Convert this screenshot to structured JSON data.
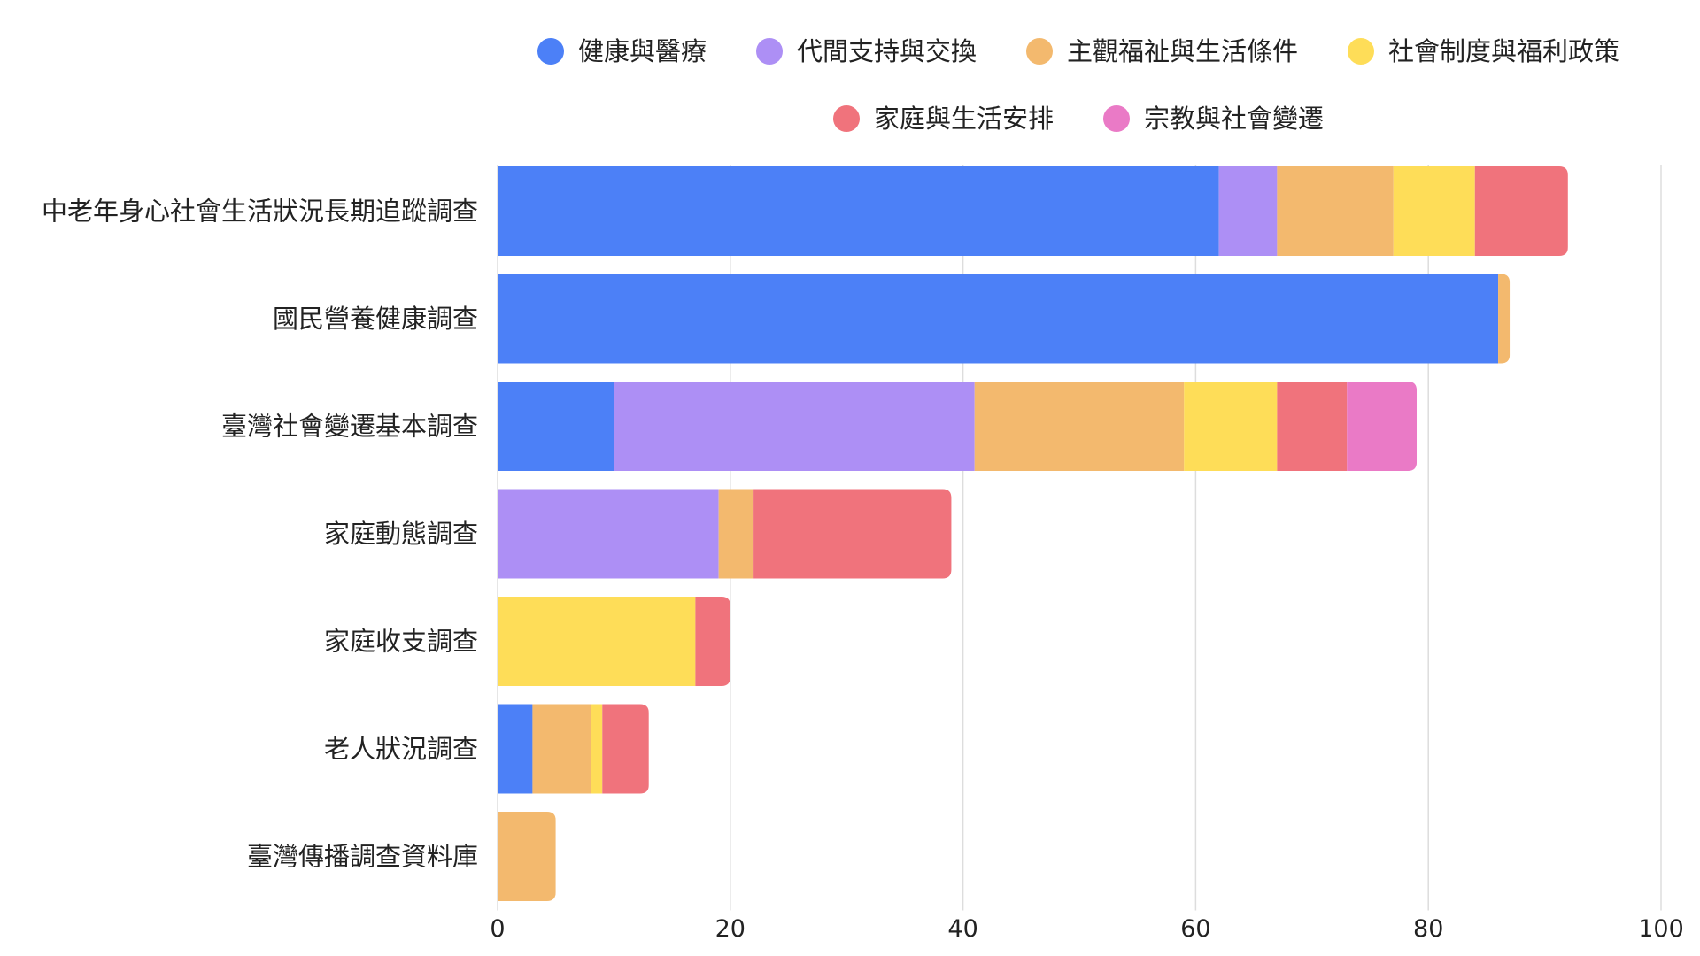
{
  "chart_data": {
    "type": "bar",
    "orientation": "horizontal",
    "stacked": true,
    "categories": [
      "中老年身心社會生活狀況長期追蹤調查",
      "國民營養健康調查",
      "臺灣社會變遷基本調查",
      "家庭動態調查",
      "家庭收支調查",
      "老人狀況調查",
      "臺灣傳播調查資料庫"
    ],
    "series": [
      {
        "name": "健康與醫療",
        "color": "#4c80f7",
        "values": [
          62,
          86,
          10,
          0,
          0,
          3,
          0
        ]
      },
      {
        "name": "代間支持與交換",
        "color": "#ad8ff5",
        "values": [
          5,
          0,
          31,
          19,
          0,
          0,
          0
        ]
      },
      {
        "name": "主觀福祉與生活條件",
        "color": "#f3b96e",
        "values": [
          10,
          1,
          18,
          3,
          0,
          5,
          5
        ]
      },
      {
        "name": "社會制度與福利政策",
        "color": "#fedd58",
        "values": [
          7,
          0,
          8,
          0,
          17,
          1,
          0
        ]
      },
      {
        "name": "家庭與生活安排",
        "color": "#f0737c",
        "values": [
          8,
          0,
          6,
          17,
          3,
          4,
          0
        ]
      },
      {
        "name": "宗教與社會變遷",
        "color": "#ea7ac6",
        "values": [
          0,
          0,
          6,
          0,
          0,
          0,
          0
        ]
      }
    ],
    "xlim": [
      0,
      100
    ],
    "xticks": [
      0,
      20,
      40,
      60,
      80,
      100
    ],
    "grid": true,
    "legend_position": "top"
  }
}
